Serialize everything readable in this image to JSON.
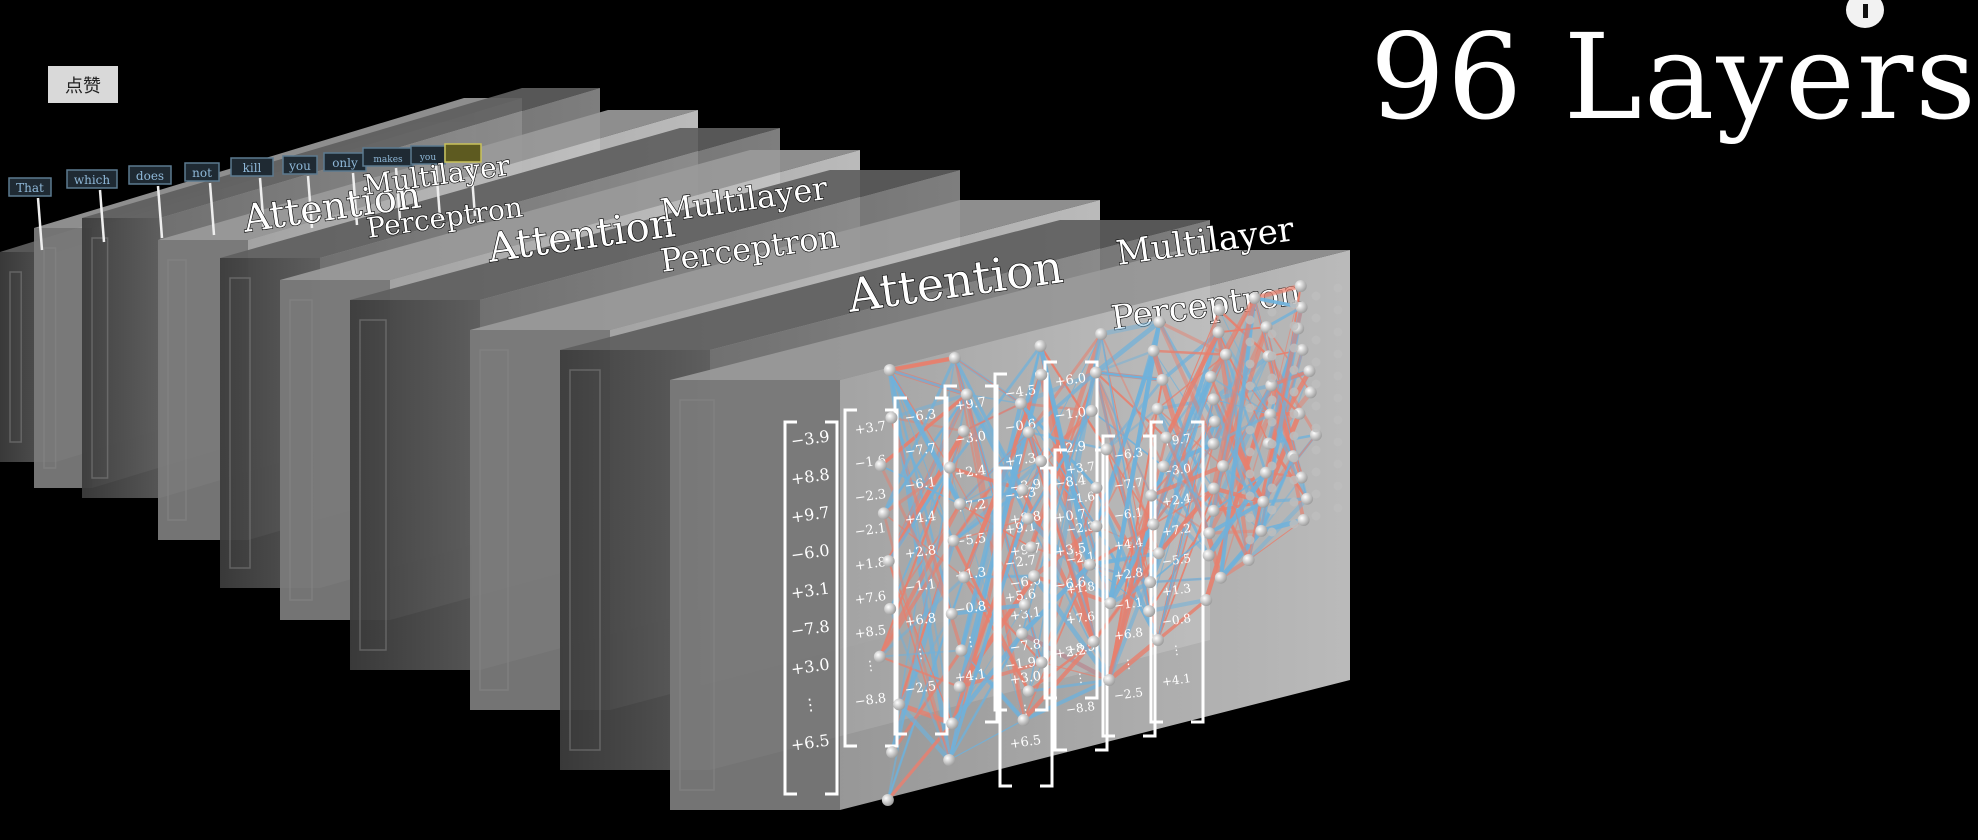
{
  "title": "96 Layers",
  "like_button_label": "点赞",
  "info_icon": "info-icon",
  "tokens": [
    "That",
    "which",
    "does",
    "not",
    "kill",
    "you",
    "only",
    "makes",
    "you",
    ""
  ],
  "layer_labels": {
    "attention": "Attention",
    "mlp_line1": "Multilayer",
    "mlp_line2": "Perceptron"
  },
  "vector_values": [
    "−3.9",
    "+8.8",
    "+9.7",
    "−6.0",
    "+3.1",
    "−7.8",
    "+3.0",
    "⋮",
    "+6.5"
  ],
  "column_values": [
    [
      "+3.7",
      "−1.6",
      "−2.3",
      "−2.1",
      "+1.8",
      "+7.6",
      "+8.5",
      "⋮",
      "−8.8"
    ],
    [
      "−6.3",
      "−7.7",
      "−6.1",
      "+4.4",
      "+2.8",
      "−1.1",
      "+6.8",
      "⋮",
      "−2.5"
    ],
    [
      "+9.7",
      "−3.0",
      "+2.4",
      "+7.2",
      "−5.5",
      "+1.3",
      "−0.8",
      "⋮",
      "+4.1"
    ],
    [
      "−4.5",
      "−0.6",
      "+7.3",
      "−3.3",
      "+9.1",
      "−2.7",
      "+5.6",
      "⋮",
      "−1.9"
    ],
    [
      "+6.0",
      "−1.0",
      "+2.9",
      "−8.4",
      "+0.7",
      "+3.5",
      "−6.6",
      "⋮",
      "+2.2"
    ]
  ],
  "colors": {
    "background": "#000000",
    "positive_weight": "#e8806e",
    "negative_weight": "#6fb2dc",
    "node": "#e8e8e8",
    "highlight_token": "#c9c25a",
    "token_text": "#8fb8d8"
  }
}
